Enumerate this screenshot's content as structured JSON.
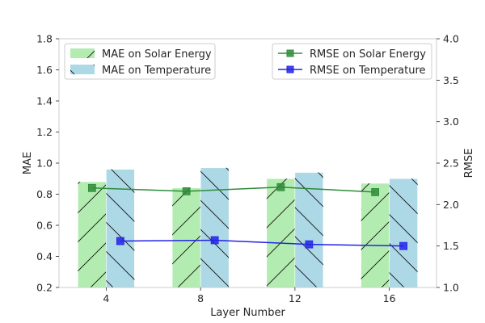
{
  "chart_data": {
    "type": "bar",
    "xlabel": "Layer Number",
    "ylabel_left": "MAE",
    "ylabel_right": "RMSE",
    "categories": [
      "4",
      "8",
      "12",
      "16"
    ],
    "ylim_left": [
      0.2,
      1.8
    ],
    "ylim_right": [
      1.0,
      4.0
    ],
    "yticks_left": [
      "0.2",
      "0.4",
      "0.6",
      "0.8",
      "1.0",
      "1.2",
      "1.4",
      "1.6",
      "1.8"
    ],
    "yticks_right": [
      "1.0",
      "1.5",
      "2.0",
      "2.5",
      "3.0",
      "3.5",
      "4.0"
    ],
    "grid": false,
    "bar_series": [
      {
        "name": "MAE on Solar Energy",
        "values": [
          0.88,
          0.84,
          0.9,
          0.87
        ],
        "color": "#b3ecb0",
        "hatch": "/"
      },
      {
        "name": "MAE on Temperature",
        "values": [
          0.96,
          0.97,
          0.94,
          0.9
        ],
        "color": "#add8e6",
        "hatch": "\\"
      }
    ],
    "line_series": [
      {
        "name": "RMSE on Solar Energy",
        "values": [
          2.2,
          2.16,
          2.21,
          2.15
        ],
        "color": "#2e8b3a",
        "marker": "square"
      },
      {
        "name": "RMSE on Temperature",
        "values": [
          1.56,
          1.57,
          1.52,
          1.5
        ],
        "color": "#2323e6",
        "marker": "square"
      }
    ],
    "legend_left_position": "top-left",
    "legend_right_position": "top-right"
  }
}
